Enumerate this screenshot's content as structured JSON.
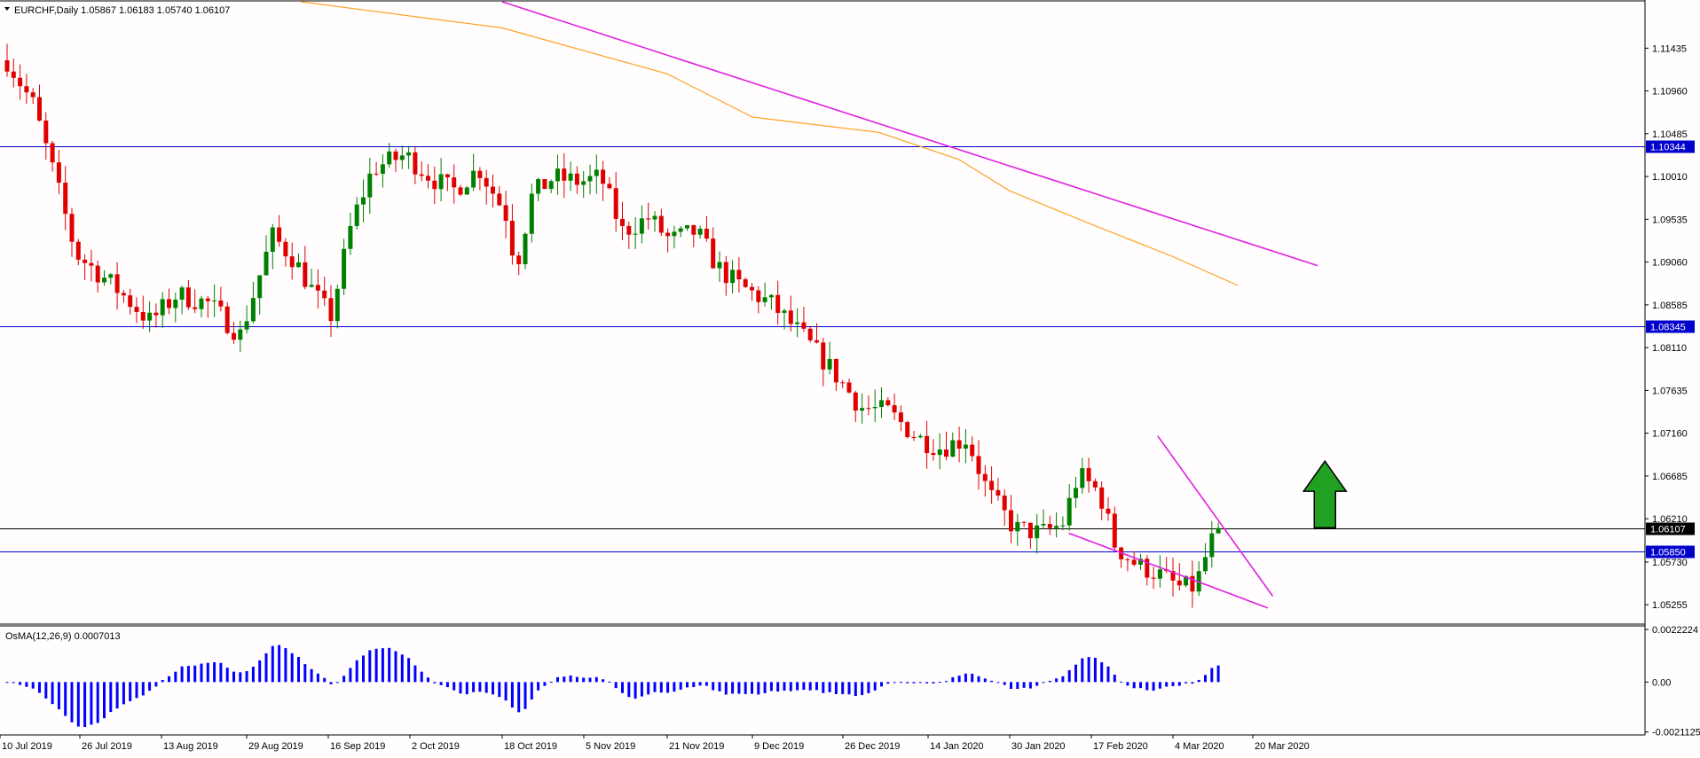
{
  "chart_data": [
    {
      "type": "candlestick",
      "symbol_header": "EURCHF,Daily  1.05867 1.06183 1.05740 1.06107",
      "ohlc_current": {
        "open": 1.05867,
        "high": 1.06183,
        "low": 1.0574,
        "close": 1.06107
      },
      "ylim": [
        1.0505,
        1.1195
      ],
      "y_ticks": [
        "1.11435",
        "1.10960",
        "1.10485",
        "1.10010",
        "1.09535",
        "1.09060",
        "1.08585",
        "1.08110",
        "1.07635",
        "1.07160",
        "1.06685",
        "1.06210",
        "1.05730",
        "1.05255"
      ],
      "y_tick_values": [
        1.11435,
        1.1096,
        1.10485,
        1.1001,
        1.09535,
        1.0906,
        1.08585,
        1.0811,
        1.07635,
        1.0716,
        1.06685,
        1.0621,
        1.0573,
        1.05255
      ],
      "x_labels": [
        "10 Jul 2019",
        "26 Jul 2019",
        "13 Aug 2019",
        "29 Aug 2019",
        "16 Sep 2019",
        "2 Oct 2019",
        "18 Oct 2019",
        "5 Nov 2019",
        "21 Nov 2019",
        "9 Dec 2019",
        "26 Dec 2019",
        "14 Jan 2020",
        "30 Jan 2020",
        "17 Feb 2020",
        "4 Mar 2020",
        "20 Mar 2020"
      ],
      "horizontal_levels": [
        {
          "value": 1.10344,
          "label": "1.10344",
          "color": "#0000cc"
        },
        {
          "value": 1.08345,
          "label": "1.08345",
          "color": "#0000cc"
        },
        {
          "value": 1.0585,
          "label": "1.05850",
          "color": "#0000cc"
        },
        {
          "value": 1.06107,
          "label": "1.06107",
          "color": "#000000"
        }
      ],
      "trendlines": [
        {
          "name": "long-downtrend",
          "from": [
            "18 Oct 2019",
            1.1195
          ],
          "to": [
            "2 Apr 2020",
            1.0902
          ],
          "color": "#e020e0"
        },
        {
          "name": "wedge-upper",
          "from": [
            "1 Mar 2020",
            1.0713
          ],
          "to": [
            "24 Mar 2020",
            1.0535
          ],
          "color": "#e020e0"
        },
        {
          "name": "wedge-lower",
          "from": [
            "12 Feb 2020",
            1.0605
          ],
          "to": [
            "23 Mar 2020",
            1.0522
          ],
          "color": "#e020e0"
        }
      ],
      "moving_average": {
        "color": "#ffa020",
        "points": [
          [
            "10 Sep 2019",
            1.1195
          ],
          [
            "18 Oct 2019",
            1.1166
          ],
          [
            "21 Nov 2019",
            1.1115
          ],
          [
            "9 Dec 2019",
            1.1067
          ],
          [
            "3 Jan 2020",
            1.105
          ],
          [
            "20 Jan 2020",
            1.102
          ],
          [
            "30 Jan 2020",
            1.0985
          ],
          [
            "17 Feb 2020",
            1.0948
          ],
          [
            "4 Mar 2020",
            1.0912
          ],
          [
            "17 Mar 2020",
            1.088
          ]
        ]
      },
      "annotation_arrow": {
        "direction": "up",
        "color": "#22a022",
        "x_date": "22 Mar 2020",
        "base": 1.0611,
        "tip": 1.0685
      },
      "colors": {
        "bull": "#008000",
        "bear": "#e00000",
        "background": "#fffdfd"
      }
    },
    {
      "type": "bar",
      "title": "OsMA(12,26,9) 0.0007013",
      "ylim": [
        -0.0022,
        0.0023
      ],
      "y_ticks": [
        "0.0022224",
        "0.00",
        "-0.0021125"
      ],
      "y_tick_values": [
        0.0022224,
        0,
        -0.0021125
      ],
      "color": "#0000ff"
    }
  ]
}
